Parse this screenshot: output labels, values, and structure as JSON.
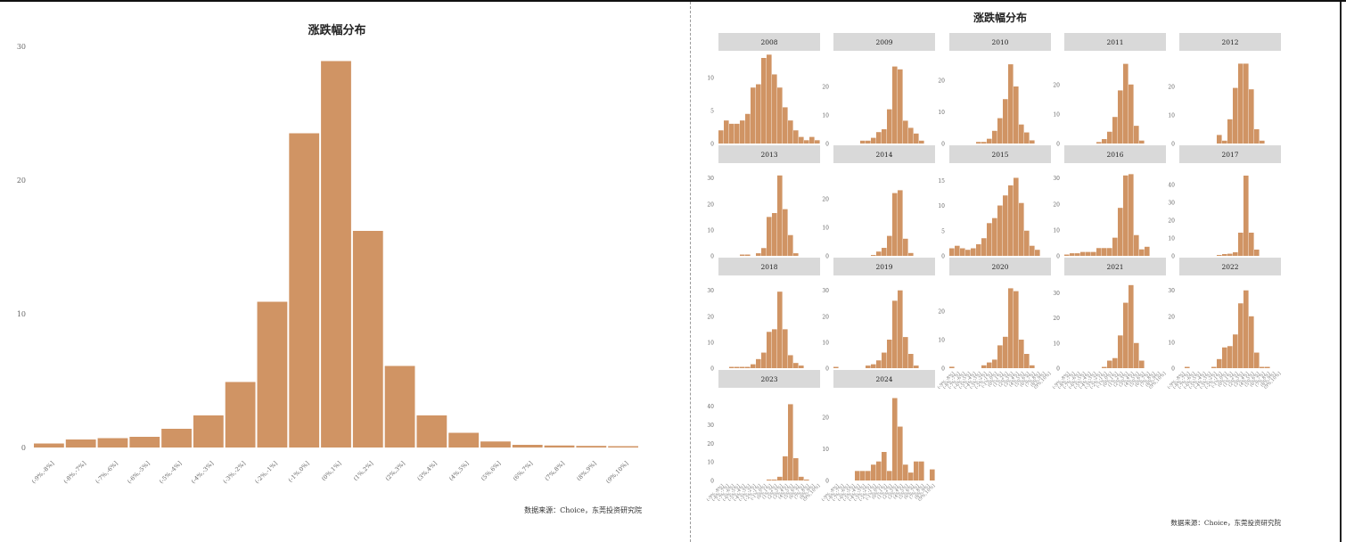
{
  "colors": {
    "bar": "#D09464",
    "strip": "#D9D9D9",
    "axis": "#555555"
  },
  "chart_data": [
    {
      "type": "bar",
      "title": "涨跌幅分布",
      "source": "数据来源：Choice，东莞投资研究院",
      "categories": [
        "(-9%,-8%]",
        "(-8%,-7%]",
        "(-7%,-6%]",
        "(-6%,-5%]",
        "(-5%,-4%]",
        "(-4%,-3%]",
        "(-3%,-2%]",
        "(-2%,-1%]",
        "(-1%,0%]",
        "(0%,1%]",
        "(1%,2%]",
        "(2%,3%]",
        "(3%,4%]",
        "(4%,5%]",
        "(5%,6%]",
        "(6%,7%]",
        "(7%,8%]",
        "(8%,9%]",
        "(9%,10%]"
      ],
      "values": [
        0.3,
        0.6,
        0.7,
        0.8,
        1.4,
        2.4,
        4.9,
        10.9,
        23.5,
        28.9,
        16.2,
        6.1,
        2.4,
        1.1,
        0.45,
        0.2,
        0.15,
        0.12,
        0.1
      ],
      "yticks": [
        "0",
        "10",
        "20",
        "30"
      ],
      "ylim": [
        0,
        30
      ],
      "grid": false
    },
    {
      "type": "bar",
      "title": "涨跌幅分布",
      "source": "数据来源：Choice，东莞投资研究院",
      "facets": [
        {
          "label": "2008",
          "yticks": [
            "0",
            "5",
            "10"
          ],
          "ymax": 13,
          "values": [
            2,
            3.5,
            3,
            3,
            3.5,
            4.5,
            8.5,
            9,
            13,
            13.5,
            10.5,
            8.5,
            5.5,
            3.5,
            2,
            1,
            0.5,
            1,
            0.5
          ]
        },
        {
          "label": "2009",
          "yticks": [
            "0",
            "10",
            "20"
          ],
          "ymax": 30,
          "values": [
            0,
            0,
            0,
            0,
            0,
            1,
            1,
            2,
            4,
            5,
            12,
            27,
            26,
            8,
            5.5,
            3.5,
            1,
            0,
            0
          ]
        },
        {
          "label": "2010",
          "yticks": [
            "0",
            "10",
            "20"
          ],
          "ymax": 27,
          "values": [
            0,
            0,
            0,
            0,
            0,
            0.5,
            0.5,
            1.5,
            4,
            8,
            14,
            25,
            18,
            6,
            3.5,
            1,
            0,
            0,
            0
          ]
        },
        {
          "label": "2011",
          "yticks": [
            "0",
            "10",
            "20"
          ],
          "ymax": 29,
          "values": [
            0,
            0,
            0,
            0,
            0,
            0,
            0.5,
            1.5,
            4,
            9,
            18,
            27,
            20,
            6,
            1,
            0,
            0,
            0,
            0
          ]
        },
        {
          "label": "2012",
          "yticks": [
            "0",
            "10",
            "20"
          ],
          "ymax": 30,
          "values": [
            0,
            0,
            0,
            0,
            0,
            0,
            0,
            3,
            1,
            8.5,
            19.5,
            28,
            28,
            19,
            5,
            1,
            0,
            0,
            0
          ]
        },
        {
          "label": "2013",
          "yticks": [
            "0",
            "10",
            "20",
            "30"
          ],
          "ymax": 33,
          "values": [
            0,
            0,
            0,
            0,
            0.5,
            0.5,
            0,
            1,
            3,
            15,
            16.5,
            31,
            18,
            8,
            1,
            0,
            0,
            0,
            0
          ]
        },
        {
          "label": "2014",
          "yticks": [
            "0",
            "10",
            "20"
          ],
          "ymax": 30,
          "values": [
            0,
            0,
            0,
            0,
            0,
            0,
            0,
            0.3,
            1.5,
            2.8,
            7,
            22,
            23,
            6,
            1,
            0,
            0,
            0,
            0
          ]
        },
        {
          "label": "2015",
          "yticks": [
            "0",
            "5",
            "10",
            "15"
          ],
          "ymax": 17,
          "values": [
            1.5,
            2,
            1.5,
            1.2,
            1.5,
            2.3,
            3.5,
            6.5,
            7.5,
            10,
            12,
            14,
            15.5,
            10.5,
            5,
            2,
            1.2,
            0,
            0
          ]
        },
        {
          "label": "2016",
          "yticks": [
            "0",
            "10",
            "20",
            "30"
          ],
          "ymax": 33,
          "values": [
            0.5,
            1,
            1,
            1.5,
            1.5,
            1.5,
            3,
            3,
            3,
            7,
            18.5,
            31,
            31.5,
            8,
            2.5,
            3.5,
            0,
            0,
            0
          ]
        },
        {
          "label": "2017",
          "yticks": [
            "0",
            "10",
            "20",
            "30",
            "40"
          ],
          "ymax": 48,
          "values": [
            0,
            0,
            0,
            0,
            0,
            0,
            0,
            0.5,
            1,
            1.2,
            2,
            13,
            45,
            13,
            3.5,
            0,
            0,
            0,
            0
          ]
        },
        {
          "label": "2018",
          "yticks": [
            "0",
            "10",
            "20",
            "30"
          ],
          "ymax": 33,
          "values": [
            0,
            0,
            0.5,
            0.5,
            0.5,
            0.5,
            1.5,
            3.5,
            6,
            14,
            15,
            29.5,
            15,
            5,
            2,
            1,
            0,
            0,
            0
          ]
        },
        {
          "label": "2019",
          "yticks": [
            "0",
            "10",
            "20",
            "30"
          ],
          "ymax": 33,
          "values": [
            0.5,
            0,
            0,
            0,
            0,
            0,
            1,
            1.5,
            3,
            6,
            11,
            26,
            30,
            12,
            5.5,
            1,
            0,
            0,
            0
          ]
        },
        {
          "label": "2020",
          "yticks": [
            "0",
            "10",
            "20"
          ],
          "ymax": 30,
          "values": [
            0.5,
            0,
            0,
            0,
            0,
            0,
            1,
            2,
            3,
            8,
            11,
            28,
            27,
            10,
            5,
            1,
            0,
            0,
            0
          ]
        },
        {
          "label": "2021",
          "yticks": [
            "0",
            "10",
            "20",
            "30"
          ],
          "ymax": 34,
          "values": [
            0,
            0,
            0,
            0,
            0,
            0,
            0,
            0.5,
            3,
            4,
            13,
            26,
            33,
            10,
            3,
            0,
            0,
            0,
            0
          ]
        },
        {
          "label": "2022",
          "yticks": [
            "0",
            "10",
            "20",
            "30"
          ],
          "ymax": 33,
          "values": [
            0,
            0.5,
            0,
            0,
            0,
            0,
            0.5,
            3.5,
            8,
            8.5,
            13,
            25,
            30,
            20,
            6,
            0.5,
            0.5,
            0,
            0
          ]
        },
        {
          "label": "2023",
          "yticks": [
            "0",
            "10",
            "20",
            "30",
            "40"
          ],
          "ymax": 46,
          "values": [
            0,
            0,
            0,
            0,
            0,
            0,
            0,
            0,
            0,
            0.5,
            0.5,
            2,
            13,
            41,
            12,
            2,
            0.5,
            0,
            0
          ]
        },
        {
          "label": "2024",
          "yticks": [
            "0",
            "10",
            "20"
          ],
          "ymax": 27,
          "values": [
            0,
            0,
            0,
            0,
            3,
            3,
            3,
            5,
            6,
            9,
            3,
            26,
            17,
            5,
            2.5,
            6,
            6,
            0,
            3.5
          ]
        }
      ]
    }
  ]
}
